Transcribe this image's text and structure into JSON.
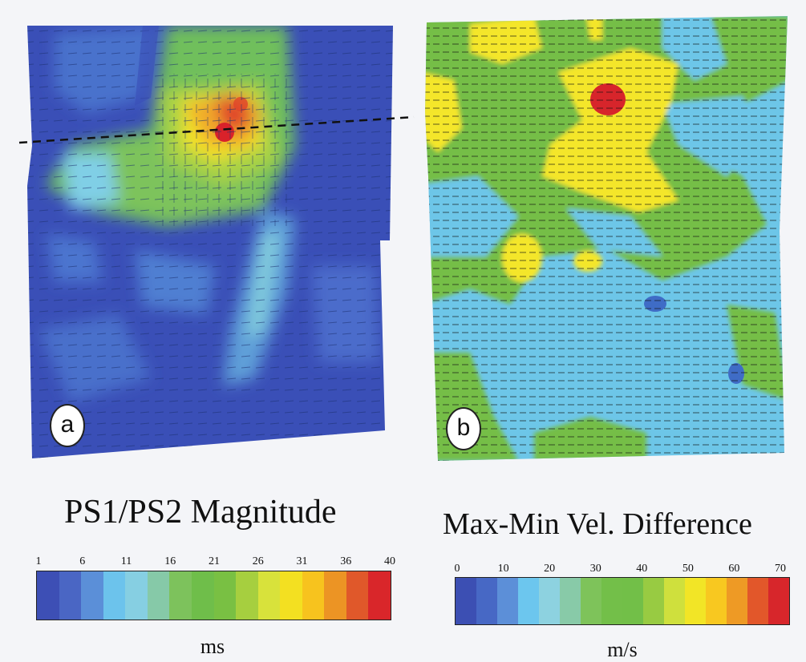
{
  "panels": [
    {
      "label": "a",
      "title": "PS1/PS2 Magnitude",
      "unit": "ms",
      "ticks": [
        "1",
        "6",
        "11",
        "16",
        "21",
        "26",
        "31",
        "36",
        "40"
      ],
      "colors": [
        "#3d4fb5",
        "#4a66c4",
        "#5b8fd8",
        "#6cc3ec",
        "#86cfe2",
        "#86c9a8",
        "#7dc25c",
        "#6fbe4a",
        "#79c043",
        "#a6cf3f",
        "#d8e23b",
        "#f3e021",
        "#f7c31e",
        "#ec9424",
        "#e0582a",
        "#d9262a"
      ]
    },
    {
      "label": "b",
      "title": "Max-Min Vel. Difference",
      "unit": "m/s",
      "ticks": [
        "0",
        "10",
        "20",
        "30",
        "40",
        "50",
        "60",
        "70"
      ],
      "colors": [
        "#3c4fb3",
        "#4768c5",
        "#5c8fd8",
        "#6cc6ee",
        "#8dd2e0",
        "#88caa8",
        "#7ec35a",
        "#73bf49",
        "#72bf48",
        "#98cb42",
        "#cfe03d",
        "#f2e526",
        "#f8c820",
        "#ee9a25",
        "#e2572a",
        "#d7262b"
      ]
    }
  ]
}
